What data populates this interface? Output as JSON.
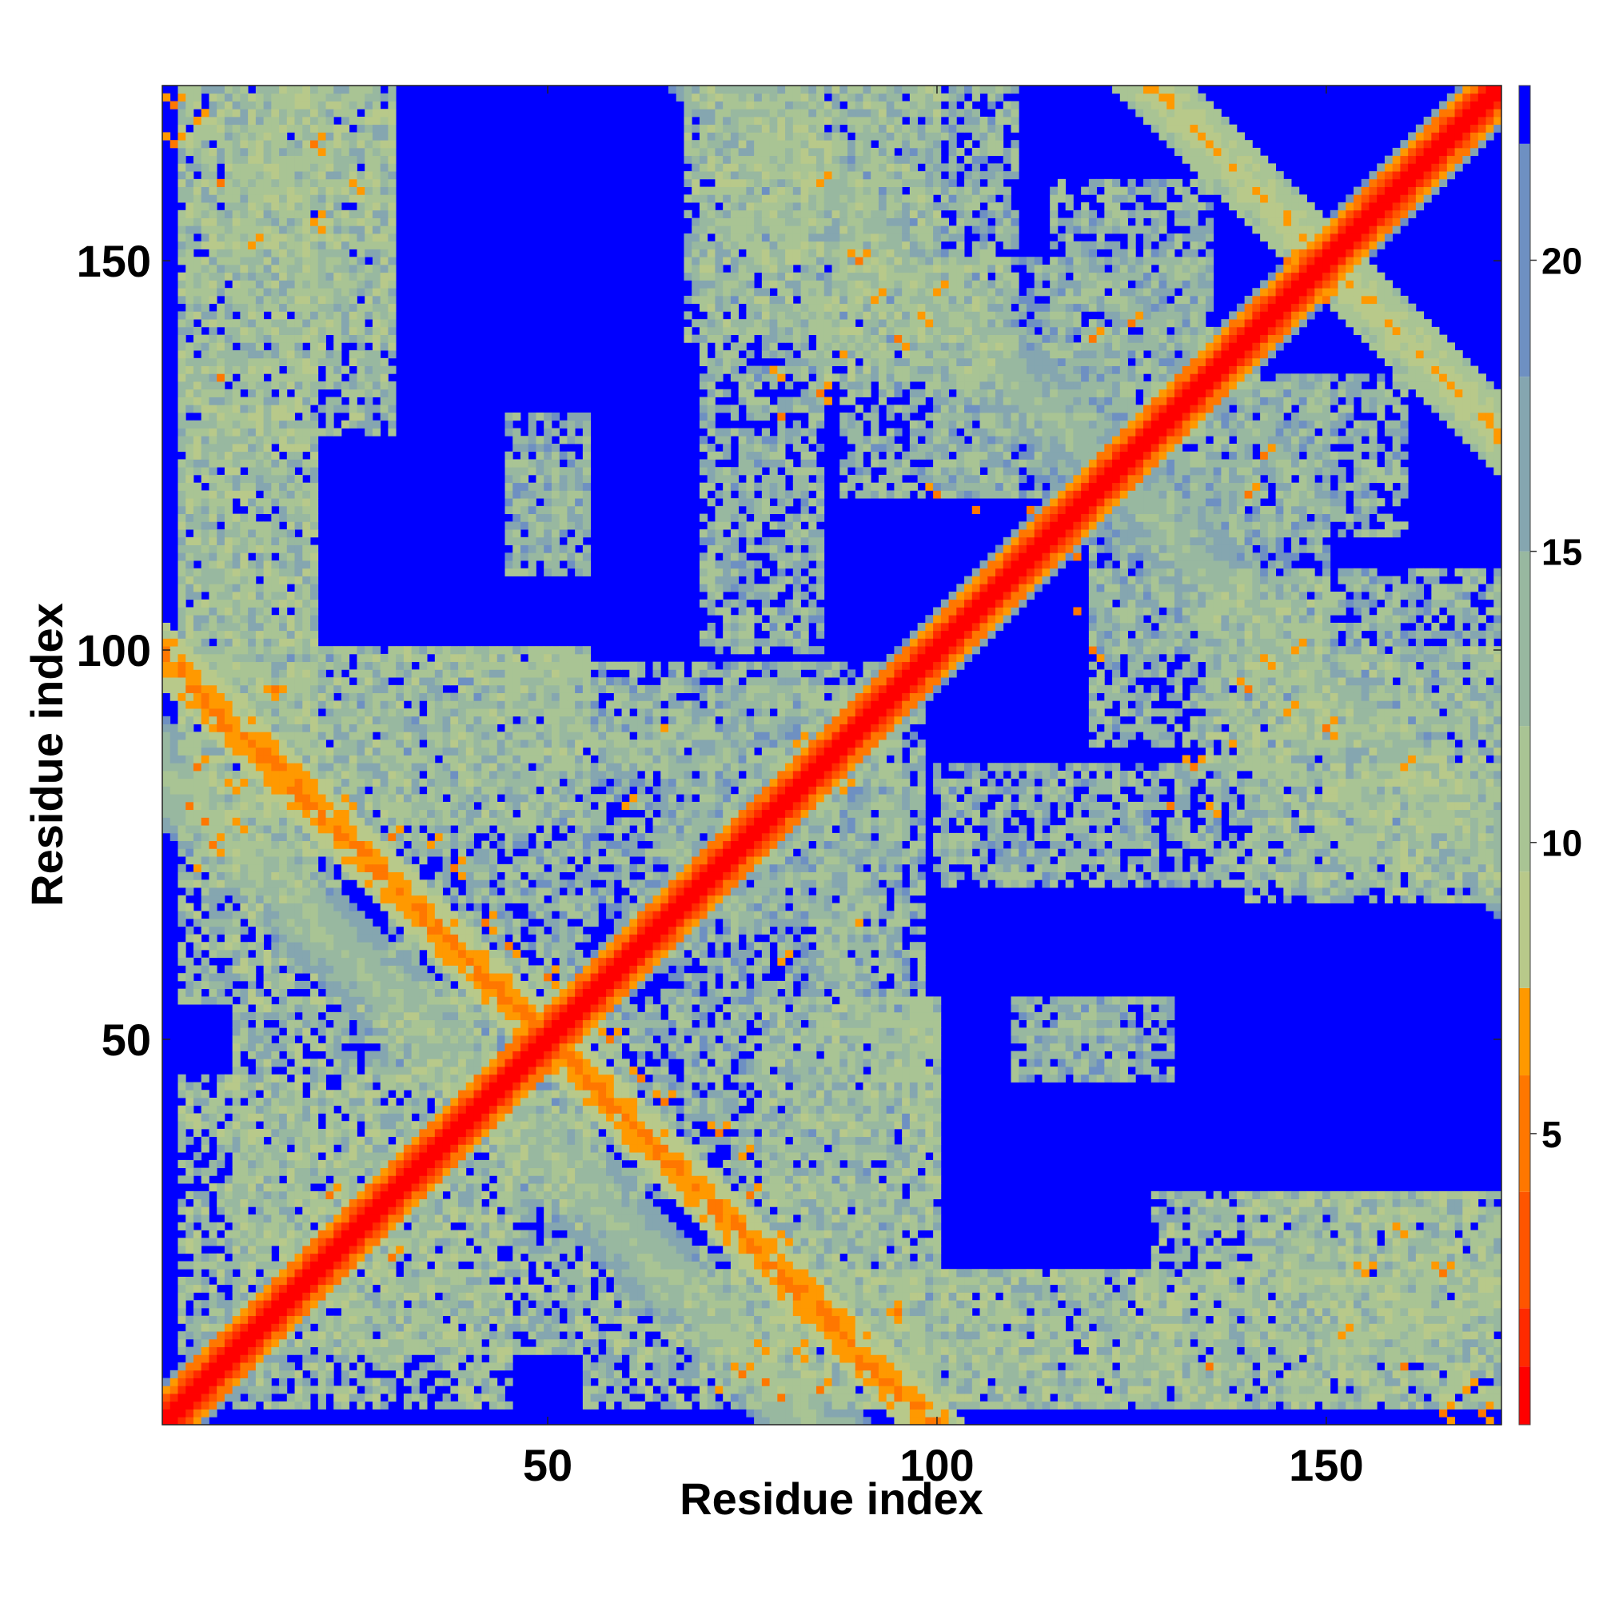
{
  "chart_data": {
    "type": "heatmap",
    "title": "",
    "xlabel": "Residue index",
    "ylabel": "Residue index",
    "n_residues": 172,
    "xlim": [
      1,
      172
    ],
    "ylim": [
      1,
      172
    ],
    "x_ticks": [
      50,
      100,
      150
    ],
    "y_ticks": [
      50,
      100,
      150
    ],
    "colorbar": {
      "range": [
        0,
        23
      ],
      "ticks": [
        5,
        10,
        15,
        20
      ],
      "bands": [
        {
          "from": 0,
          "to": 1,
          "color": "#ff0000"
        },
        {
          "from": 1,
          "to": 2,
          "color": "#ff2a00"
        },
        {
          "from": 2,
          "to": 4,
          "color": "#ff5500"
        },
        {
          "from": 4,
          "to": 6,
          "color": "#ff7700"
        },
        {
          "from": 6,
          "to": 7.5,
          "color": "#ff9900"
        },
        {
          "from": 7.5,
          "to": 9.5,
          "color": "#b8c98a"
        },
        {
          "from": 9.5,
          "to": 12,
          "color": "#a9c494"
        },
        {
          "from": 12,
          "to": 15,
          "color": "#98b8a0"
        },
        {
          "from": 15,
          "to": 18,
          "color": "#85a6b0"
        },
        {
          "from": 18,
          "to": 22,
          "color": "#6e90c2"
        },
        {
          "from": 22,
          "to": 23,
          "color": "#0000ff"
        }
      ]
    },
    "diagonal_value": 0,
    "background_value": 23,
    "contact_bands": [
      {
        "type": "diag",
        "a": 0,
        "c": 0,
        "width": 5,
        "value": 12
      },
      {
        "type": "diag",
        "a": 0,
        "c": 0,
        "width": 2.5,
        "value": 4
      },
      {
        "type": "anti",
        "a": 1,
        "c": 100,
        "width": 3,
        "value": 6
      },
      {
        "type": "anti",
        "a": 1,
        "c": 85,
        "width": 5,
        "value": 12
      },
      {
        "type": "anti",
        "a": 1,
        "c": 300,
        "width": 4,
        "value": 8
      },
      {
        "type": "anti",
        "a": 1,
        "c": 245,
        "width": 5,
        "value": 13
      }
    ],
    "contact_regions": [
      {
        "x": [
          3,
          30
        ],
        "y": [
          128,
          172
        ],
        "value": 13
      },
      {
        "x": [
          3,
          20
        ],
        "y": [
          55,
          128
        ],
        "value": 13
      },
      {
        "x": [
          3,
          55
        ],
        "y": [
          78,
          100
        ],
        "value": 13
      },
      {
        "x": [
          3,
          55
        ],
        "y": [
          10,
          45
        ],
        "value": 13
      },
      {
        "x": [
          45,
          95
        ],
        "y": [
          85,
          98
        ],
        "value": 14
      },
      {
        "x": [
          45,
          100
        ],
        "y": [
          30,
          55
        ],
        "value": 14
      },
      {
        "x": [
          65,
          95
        ],
        "y": [
          55,
          85
        ],
        "value": 15
      },
      {
        "x": [
          70,
          100
        ],
        "y": [
          3,
          30
        ],
        "value": 14
      },
      {
        "x": [
          70,
          85
        ],
        "y": [
          100,
          172
        ],
        "value": 14
      },
      {
        "x": [
          88,
          110
        ],
        "y": [
          120,
          172
        ],
        "value": 14
      },
      {
        "x": [
          45,
          55
        ],
        "y": [
          110,
          125
        ],
        "value": 15
      },
      {
        "x": [
          100,
          172
        ],
        "y": [
          3,
          20
        ],
        "value": 13
      },
      {
        "x": [
          140,
          172
        ],
        "y": [
          10,
          30
        ],
        "value": 13
      },
      {
        "x": [
          140,
          172
        ],
        "y": [
          68,
          100
        ],
        "value": 13
      },
      {
        "x": [
          150,
          172
        ],
        "y": [
          70,
          85
        ],
        "value": 13
      },
      {
        "x": [
          110,
          130
        ],
        "y": [
          45,
          55
        ],
        "value": 15
      },
      {
        "x": [
          115,
          135
        ],
        "y": [
          130,
          160
        ],
        "value": 14
      },
      {
        "x": [
          135,
          150
        ],
        "y": [
          85,
          108
        ],
        "value": 13
      },
      {
        "x": [
          100,
          135
        ],
        "y": [
          120,
          150
        ],
        "value": 16
      }
    ],
    "hot_spots": [
      [
        2,
        170
      ],
      [
        2,
        165
      ],
      [
        8,
        160
      ],
      [
        12,
        152
      ],
      [
        8,
        135
      ],
      [
        5,
        95
      ],
      [
        7,
        90
      ],
      [
        10,
        82
      ],
      [
        15,
        94
      ],
      [
        4,
        80
      ],
      [
        6,
        78
      ],
      [
        25,
        80
      ],
      [
        30,
        76
      ],
      [
        30,
        22
      ],
      [
        28,
        30
      ],
      [
        45,
        55
      ],
      [
        50,
        48
      ],
      [
        55,
        44
      ],
      [
        58,
        50
      ],
      [
        62,
        45
      ],
      [
        65,
        42
      ],
      [
        72,
        38
      ],
      [
        75,
        35
      ],
      [
        78,
        10
      ],
      [
        75,
        7
      ],
      [
        85,
        5
      ],
      [
        90,
        8
      ],
      [
        95,
        15
      ],
      [
        72,
        5
      ],
      [
        92,
        145
      ],
      [
        90,
        150
      ],
      [
        85,
        160
      ],
      [
        80,
        135
      ],
      [
        88,
        138
      ],
      [
        100,
        120
      ],
      [
        105,
        118
      ],
      [
        112,
        118
      ],
      [
        120,
        140
      ],
      [
        125,
        142
      ],
      [
        145,
        150
      ],
      [
        148,
        148
      ],
      [
        140,
        95
      ],
      [
        143,
        98
      ],
      [
        146,
        100
      ],
      [
        130,
        80
      ],
      [
        133,
        85
      ],
      [
        160,
        25
      ],
      [
        165,
        20
      ],
      [
        168,
        5
      ],
      [
        155,
        20
      ],
      [
        60,
        80
      ],
      [
        65,
        90
      ],
      [
        82,
        88
      ]
    ]
  }
}
